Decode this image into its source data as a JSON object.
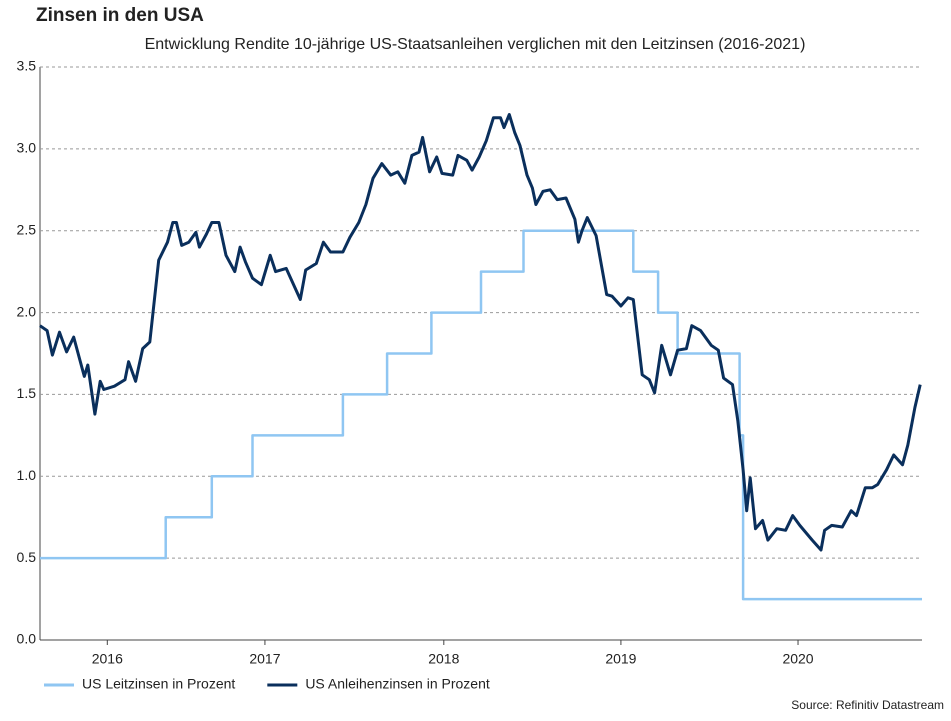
{
  "chart_data": {
    "type": "line",
    "title": "Zinsen in den USA",
    "subtitle": "Entwicklung Rendite 10-jährige US-Staatsanleihen verglichen mit den Leitzinsen (2016-2021)",
    "source": "Source: Refinitiv Datastream",
    "xlim": [
      2016.25,
      2021.23
    ],
    "xticks": [
      {
        "value": 2016.63,
        "label": "2016"
      },
      {
        "value": 2017.52,
        "label": "2017"
      },
      {
        "value": 2018.53,
        "label": "2018"
      },
      {
        "value": 2019.53,
        "label": "2019"
      },
      {
        "value": 2020.53,
        "label": "2020"
      }
    ],
    "ylim": [
      0,
      3.5
    ],
    "yticks": [
      {
        "value": 0,
        "label": "0.0"
      },
      {
        "value": 0.5,
        "label": "0.5"
      },
      {
        "value": 1,
        "label": "1.0"
      },
      {
        "value": 1.5,
        "label": "1.5"
      },
      {
        "value": 2,
        "label": "2.0"
      },
      {
        "value": 2.5,
        "label": "2.5"
      },
      {
        "value": 3,
        "label": "3.0"
      },
      {
        "value": 3.5,
        "label": "3.5"
      }
    ],
    "grid": true,
    "legend": "bottom-left",
    "series": [
      {
        "name": "US Leitzinsen in Prozent",
        "color": "#8fc6f2",
        "x": [
          2016.25,
          2016.96,
          2016.96,
          2017.22,
          2017.22,
          2017.45,
          2017.45,
          2017.96,
          2017.96,
          2018.21,
          2018.21,
          2018.46,
          2018.46,
          2018.74,
          2018.74,
          2018.98,
          2018.98,
          2019.6,
          2019.6,
          2019.74,
          2019.74,
          2019.85,
          2019.85,
          2020.2,
          2020.2,
          2020.22,
          2020.22,
          2021.23
        ],
        "values": [
          0.5,
          0.5,
          0.75,
          0.75,
          1.0,
          1.0,
          1.25,
          1.25,
          1.5,
          1.5,
          1.75,
          1.75,
          2.0,
          2.0,
          2.25,
          2.25,
          2.5,
          2.5,
          2.25,
          2.25,
          2.0,
          2.0,
          1.75,
          1.75,
          1.25,
          1.25,
          0.25,
          0.25
        ]
      },
      {
        "name": "US Anleihenzinsen in Prozent",
        "color": "#0a2f5c",
        "x": [
          2016.25,
          2016.29,
          2016.32,
          2016.36,
          2016.4,
          2016.44,
          2016.5,
          2016.52,
          2016.56,
          2016.59,
          2016.61,
          2016.67,
          2016.73,
          2016.75,
          2016.79,
          2016.83,
          2016.87,
          2016.92,
          2016.97,
          2017.0,
          2017.02,
          2017.05,
          2017.09,
          2017.13,
          2017.15,
          2017.19,
          2017.22,
          2017.26,
          2017.3,
          2017.35,
          2017.38,
          2017.41,
          2017.45,
          2017.5,
          2017.55,
          2017.58,
          2017.64,
          2017.72,
          2017.75,
          2017.81,
          2017.85,
          2017.89,
          2017.96,
          2018.0,
          2018.05,
          2018.09,
          2018.13,
          2018.18,
          2018.23,
          2018.27,
          2018.31,
          2018.35,
          2018.39,
          2018.41,
          2018.45,
          2018.49,
          2018.52,
          2018.58,
          2018.61,
          2018.66,
          2018.69,
          2018.73,
          2018.77,
          2018.81,
          2018.85,
          2018.87,
          2018.9,
          2018.93,
          2018.96,
          2019.0,
          2019.03,
          2019.05,
          2019.09,
          2019.13,
          2019.17,
          2019.22,
          2019.27,
          2019.29,
          2019.31,
          2019.34,
          2019.39,
          2019.45,
          2019.48,
          2019.53,
          2019.57,
          2019.6,
          2019.65,
          2019.69,
          2019.72,
          2019.76,
          2019.81,
          2019.85,
          2019.9,
          2019.93,
          2019.98,
          2020.04,
          2020.08,
          2020.11,
          2020.16,
          2020.19,
          2020.22,
          2020.24,
          2020.26,
          2020.29,
          2020.33,
          2020.36,
          2020.41,
          2020.46,
          2020.5,
          2020.54,
          2020.61,
          2020.66,
          2020.68,
          2020.72,
          2020.78,
          2020.83,
          2020.86,
          2020.91,
          2020.95,
          2020.98,
          2021.03,
          2021.07,
          2021.12,
          2021.15,
          2021.19,
          2021.22
        ],
        "values": [
          1.92,
          1.89,
          1.74,
          1.88,
          1.76,
          1.85,
          1.61,
          1.68,
          1.38,
          1.58,
          1.53,
          1.55,
          1.59,
          1.7,
          1.58,
          1.78,
          1.82,
          2.32,
          2.43,
          2.55,
          2.55,
          2.41,
          2.43,
          2.49,
          2.4,
          2.48,
          2.55,
          2.55,
          2.35,
          2.25,
          2.4,
          2.31,
          2.21,
          2.17,
          2.35,
          2.25,
          2.27,
          2.08,
          2.26,
          2.3,
          2.43,
          2.37,
          2.37,
          2.46,
          2.55,
          2.66,
          2.82,
          2.91,
          2.84,
          2.86,
          2.79,
          2.96,
          2.98,
          3.07,
          2.86,
          2.95,
          2.85,
          2.84,
          2.96,
          2.93,
          2.87,
          2.95,
          3.05,
          3.19,
          3.19,
          3.13,
          3.21,
          3.1,
          3.02,
          2.84,
          2.76,
          2.66,
          2.74,
          2.75,
          2.69,
          2.7,
          2.57,
          2.43,
          2.5,
          2.58,
          2.47,
          2.11,
          2.1,
          2.04,
          2.09,
          2.08,
          1.62,
          1.59,
          1.51,
          1.8,
          1.62,
          1.77,
          1.78,
          1.92,
          1.89,
          1.8,
          1.77,
          1.6,
          1.56,
          1.34,
          1.04,
          0.79,
          0.99,
          0.68,
          0.73,
          0.61,
          0.68,
          0.67,
          0.76,
          0.7,
          0.61,
          0.55,
          0.67,
          0.7,
          0.69,
          0.79,
          0.76,
          0.93,
          0.93,
          0.95,
          1.04,
          1.13,
          1.07,
          1.19,
          1.42,
          1.56
        ]
      }
    ]
  }
}
